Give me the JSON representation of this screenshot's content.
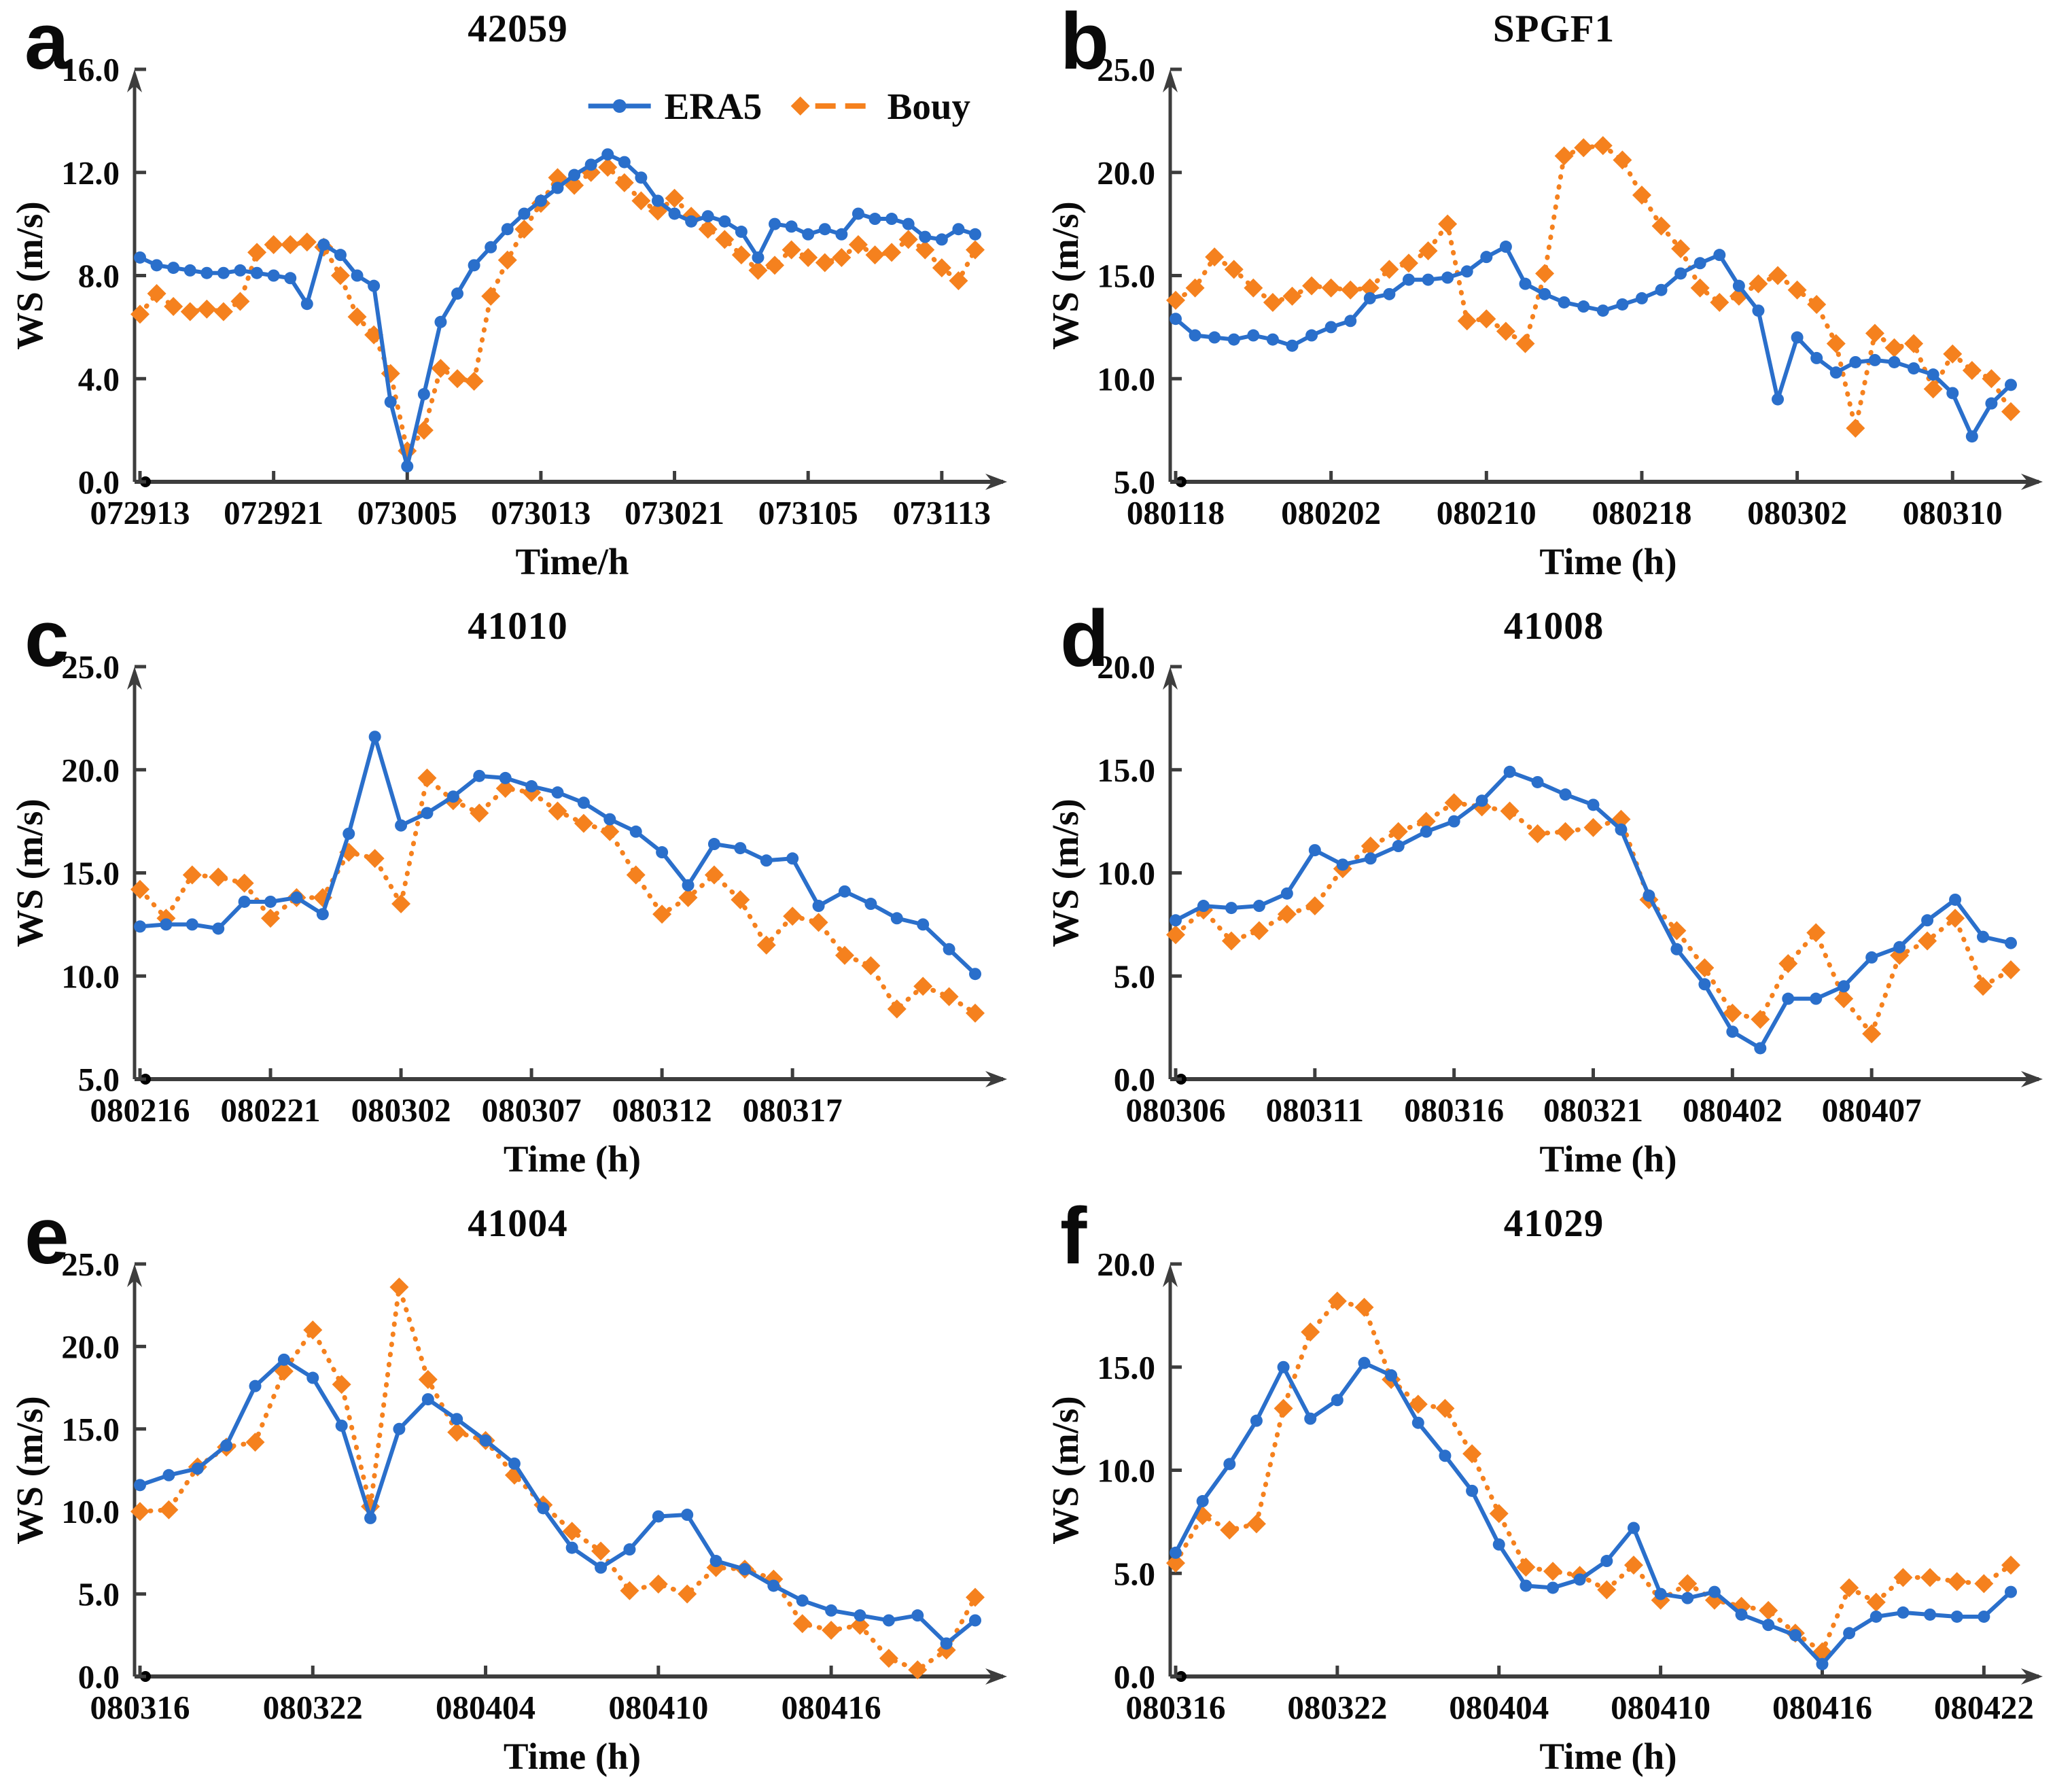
{
  "colors": {
    "era5": "#2a6fcb",
    "bouy": "#f5811e",
    "axis": "#3d3d3d",
    "text": "#0a0a0a",
    "background": "#ffffff"
  },
  "legend": {
    "era5": "ERA5",
    "bouy": "Bouy"
  },
  "chart_data": [
    {
      "type": "line",
      "letter": "a",
      "title": "42059",
      "xlabel": "Time/h",
      "ylabel": "WS (m/s)",
      "ylim": [
        0,
        16
      ],
      "y_ticks": [
        0,
        4,
        8,
        12,
        16
      ],
      "x_tick_labels": [
        "072913",
        "072921",
        "073005",
        "073013",
        "073021",
        "073105",
        "073113"
      ],
      "x_tick_hours": [
        0,
        8,
        16,
        24,
        32,
        40,
        48
      ],
      "legend": true,
      "series": [
        {
          "name": "ERA5",
          "values": [
            8.7,
            8.4,
            8.3,
            8.2,
            8.1,
            8.1,
            8.2,
            8.1,
            8.0,
            7.9,
            6.9,
            9.2,
            8.8,
            8.0,
            7.6,
            3.1,
            0.6,
            3.4,
            6.2,
            7.3,
            8.4,
            9.1,
            9.8,
            10.4,
            10.9,
            11.4,
            11.9,
            12.3,
            12.7,
            12.4,
            11.8,
            10.9,
            10.4,
            10.1,
            10.3,
            10.1,
            9.7,
            8.7,
            10.0,
            9.9,
            9.6,
            9.8,
            9.6,
            10.4,
            10.2,
            10.2,
            10.0,
            9.5,
            9.4,
            9.8,
            9.6
          ]
        },
        {
          "name": "Bouy",
          "values": [
            6.5,
            7.3,
            6.8,
            6.6,
            6.7,
            6.6,
            7.0,
            8.9,
            9.2,
            9.2,
            9.3,
            9.1,
            8.0,
            6.4,
            5.7,
            4.2,
            1.2,
            2.0,
            4.4,
            4.0,
            3.9,
            7.2,
            8.6,
            9.8,
            10.8,
            11.8,
            11.5,
            12.0,
            12.2,
            11.6,
            10.9,
            10.5,
            11.0,
            10.3,
            9.8,
            9.4,
            8.8,
            8.2,
            8.4,
            9.0,
            8.7,
            8.5,
            8.7,
            9.2,
            8.8,
            8.9,
            9.4,
            9.0,
            8.3,
            7.8,
            9.0
          ]
        }
      ]
    },
    {
      "type": "line",
      "letter": "b",
      "title": "SPGF1",
      "xlabel": "Time (h)",
      "ylabel": "WS (m/s)",
      "ylim": [
        5,
        25
      ],
      "y_ticks": [
        5,
        10,
        15,
        20,
        25
      ],
      "x_tick_labels": [
        "080118",
        "080202",
        "080210",
        "080218",
        "080302",
        "080310"
      ],
      "x_tick_hours": [
        0,
        8,
        16,
        24,
        32,
        40
      ],
      "legend": false,
      "series": [
        {
          "name": "ERA5",
          "values": [
            12.9,
            12.1,
            12.0,
            11.9,
            12.1,
            11.9,
            11.6,
            12.1,
            12.5,
            12.8,
            13.9,
            14.1,
            14.8,
            14.8,
            14.9,
            15.2,
            15.9,
            16.4,
            14.6,
            14.1,
            13.7,
            13.5,
            13.3,
            13.6,
            13.9,
            14.3,
            15.1,
            15.6,
            16.0,
            14.5,
            13.3,
            9.0,
            12.0,
            11.0,
            10.3,
            10.8,
            10.9,
            10.8,
            10.5,
            10.2,
            9.3,
            7.2,
            8.8,
            9.7
          ]
        },
        {
          "name": "Bouy",
          "values": [
            13.8,
            14.4,
            15.9,
            15.3,
            14.4,
            13.7,
            14.0,
            14.5,
            14.4,
            14.3,
            14.4,
            15.3,
            15.6,
            16.2,
            17.5,
            12.8,
            12.9,
            12.3,
            11.7,
            15.1,
            20.8,
            21.2,
            21.3,
            20.6,
            18.9,
            17.4,
            16.3,
            14.4,
            13.7,
            14.0,
            14.6,
            15.0,
            14.3,
            13.6,
            11.7,
            7.6,
            12.2,
            11.5,
            11.7,
            9.5,
            11.2,
            10.4,
            10.0,
            8.4
          ]
        }
      ]
    },
    {
      "type": "line",
      "letter": "c",
      "title": "41010",
      "xlabel": "Time (h)",
      "ylabel": "WS (m/s)",
      "ylim": [
        5,
        25
      ],
      "y_ticks": [
        5,
        10,
        15,
        20,
        25
      ],
      "x_tick_labels": [
        "080216",
        "080221",
        "080302",
        "080307",
        "080312",
        "080317"
      ],
      "x_tick_hours": [
        0,
        5,
        10,
        15,
        20,
        25
      ],
      "legend": false,
      "series": [
        {
          "name": "ERA5",
          "values": [
            12.4,
            12.5,
            12.5,
            12.3,
            13.6,
            13.6,
            13.8,
            13.0,
            16.9,
            21.6,
            17.3,
            17.9,
            18.7,
            19.7,
            19.6,
            19.2,
            18.9,
            18.4,
            17.6,
            17.0,
            16.0,
            14.4,
            16.4,
            16.2,
            15.6,
            15.7,
            13.4,
            14.1,
            13.5,
            12.8,
            12.5,
            11.3,
            10.1
          ]
        },
        {
          "name": "Bouy",
          "values": [
            14.2,
            12.8,
            14.9,
            14.8,
            14.5,
            12.8,
            13.8,
            13.8,
            16.0,
            15.7,
            13.5,
            19.6,
            18.5,
            17.9,
            19.1,
            18.9,
            18.0,
            17.4,
            17.0,
            14.9,
            13.0,
            13.8,
            14.9,
            13.7,
            11.5,
            12.9,
            12.6,
            11.0,
            10.5,
            8.4,
            9.5,
            9.0,
            8.2
          ]
        }
      ]
    },
    {
      "type": "line",
      "letter": "d",
      "title": "41008",
      "xlabel": "Time (h)",
      "ylabel": "WS (m/s)",
      "ylim": [
        0,
        20
      ],
      "y_ticks": [
        0,
        5,
        10,
        15,
        20
      ],
      "x_tick_labels": [
        "080306",
        "080311",
        "080316",
        "080321",
        "080402",
        "080407"
      ],
      "x_tick_hours": [
        0,
        5,
        10,
        15,
        20,
        25
      ],
      "legend": false,
      "series": [
        {
          "name": "ERA5",
          "values": [
            7.7,
            8.4,
            8.3,
            8.4,
            9.0,
            11.1,
            10.4,
            10.7,
            11.3,
            12.0,
            12.5,
            13.5,
            14.9,
            14.4,
            13.8,
            13.3,
            12.1,
            8.9,
            6.3,
            4.6,
            2.3,
            1.5,
            3.9,
            3.9,
            4.5,
            5.9,
            6.4,
            7.7,
            8.7,
            6.9,
            6.6
          ]
        },
        {
          "name": "Bouy",
          "values": [
            7.0,
            8.2,
            6.7,
            7.2,
            8.0,
            8.4,
            10.2,
            11.3,
            12.0,
            12.5,
            13.4,
            13.2,
            13.0,
            11.9,
            12.0,
            12.2,
            12.6,
            8.7,
            7.2,
            5.4,
            3.2,
            2.9,
            5.6,
            7.1,
            3.9,
            2.2,
            6.0,
            6.7,
            7.8,
            4.5,
            5.3
          ]
        }
      ]
    },
    {
      "type": "line",
      "letter": "e",
      "title": "41004",
      "xlabel": "Time (h)",
      "ylabel": "WS (m/s)",
      "ylim": [
        0,
        25
      ],
      "y_ticks": [
        0,
        5,
        10,
        15,
        20,
        25
      ],
      "x_tick_labels": [
        "080316",
        "080322",
        "080404",
        "080410",
        "080416"
      ],
      "x_tick_hours": [
        0,
        6,
        12,
        18,
        24
      ],
      "legend": false,
      "series": [
        {
          "name": "ERA5",
          "values": [
            11.6,
            12.2,
            12.6,
            14.0,
            17.6,
            19.2,
            18.1,
            15.2,
            9.6,
            15.0,
            16.8,
            15.6,
            14.3,
            12.9,
            10.2,
            7.8,
            6.6,
            7.7,
            9.7,
            9.8,
            7.0,
            6.5,
            5.5,
            4.6,
            4.0,
            3.7,
            3.4,
            3.7,
            2.0,
            3.4
          ]
        },
        {
          "name": "Bouy",
          "values": [
            10.0,
            10.1,
            12.7,
            13.9,
            14.2,
            18.5,
            21.0,
            17.7,
            10.3,
            23.6,
            18.0,
            14.8,
            14.3,
            12.2,
            10.4,
            8.8,
            7.6,
            5.2,
            5.6,
            5.0,
            6.6,
            6.5,
            5.9,
            3.2,
            2.8,
            3.1,
            1.1,
            0.4,
            1.6,
            4.8
          ]
        }
      ]
    },
    {
      "type": "line",
      "letter": "f",
      "title": "41029",
      "xlabel": "Time (h)",
      "ylabel": "WS (m/s)",
      "ylim": [
        0,
        20
      ],
      "y_ticks": [
        0,
        5,
        10,
        15,
        20
      ],
      "x_tick_labels": [
        "080316",
        "080322",
        "080404",
        "080410",
        "080416",
        "080422"
      ],
      "x_tick_hours": [
        0,
        6,
        12,
        18,
        24,
        30
      ],
      "legend": false,
      "series": [
        {
          "name": "ERA5",
          "values": [
            6.0,
            8.5,
            10.3,
            12.4,
            15.0,
            12.5,
            13.4,
            15.2,
            14.6,
            12.3,
            10.7,
            9.0,
            6.4,
            4.4,
            4.3,
            4.7,
            5.6,
            7.2,
            4.0,
            3.8,
            4.1,
            3.0,
            2.5,
            2.0,
            0.6,
            2.1,
            2.9,
            3.1,
            3.0,
            2.9,
            2.9,
            4.1
          ]
        },
        {
          "name": "Bouy",
          "values": [
            5.5,
            7.8,
            7.1,
            7.4,
            13.0,
            16.7,
            18.2,
            17.9,
            14.4,
            13.2,
            13.0,
            10.8,
            7.9,
            5.3,
            5.1,
            4.9,
            4.2,
            5.4,
            3.7,
            4.5,
            3.7,
            3.4,
            3.2,
            2.1,
            1.2,
            4.3,
            3.6,
            4.8,
            4.8,
            4.6,
            4.5,
            5.4
          ]
        }
      ]
    }
  ]
}
